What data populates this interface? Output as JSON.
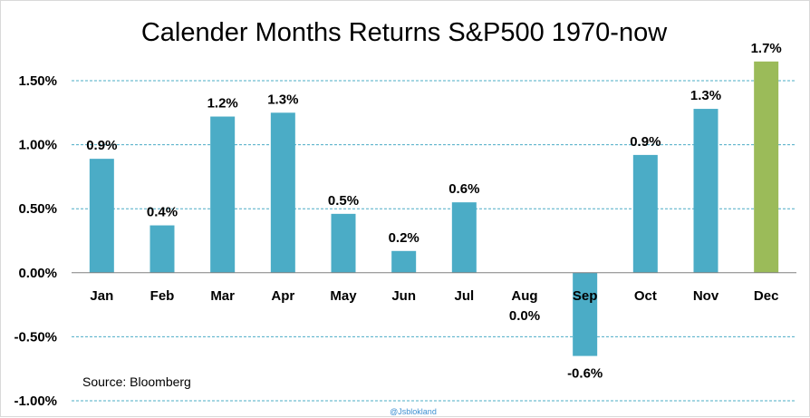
{
  "chart_data": {
    "type": "bar",
    "title": "Calender Months Returns S&P500 1970-now",
    "categories": [
      "Jan",
      "Feb",
      "Mar",
      "Apr",
      "May",
      "Jun",
      "Jul",
      "Aug",
      "Sep",
      "Oct",
      "Nov",
      "Dec"
    ],
    "values": [
      0.89,
      0.37,
      1.22,
      1.25,
      0.46,
      0.17,
      0.55,
      0.0,
      -0.65,
      0.92,
      1.28,
      1.65
    ],
    "data_labels": [
      "0.9%",
      "0.4%",
      "1.2%",
      "1.3%",
      "0.5%",
      "0.2%",
      "0.6%",
      "0.0%",
      "-0.6%",
      "0.9%",
      "1.3%",
      "1.7%"
    ],
    "ylim": [
      -1.0,
      1.5
    ],
    "yticks": [
      -1.0,
      -0.5,
      0.0,
      0.5,
      1.0,
      1.5
    ],
    "ytick_labels": [
      "-1.00%",
      "-0.50%",
      "0.00%",
      "0.50%",
      "1.00%",
      "1.50%"
    ],
    "grid": true,
    "legend": "none",
    "colors": {
      "bar": "#4bacc6",
      "highlight": "#9bbb59",
      "grid": "#4bacc6",
      "axis": "#808080"
    },
    "highlight_category": "Dec",
    "source_note": "Source:  Bloomberg",
    "credit": "@Jsblokland"
  }
}
